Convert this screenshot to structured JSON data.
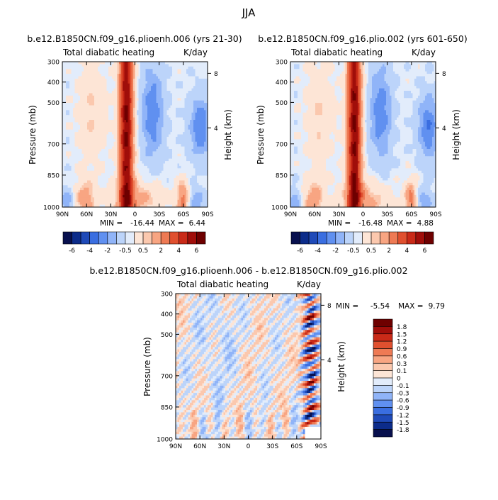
{
  "page_title": "JJA",
  "colors": {
    "axis": "#000000",
    "background": "#ffffff"
  },
  "chart_data": [
    {
      "id": "panel1",
      "type": "heatmap",
      "title": "b.e12.B1850CN.f09_g16.plioenh.006 (yrs 21-30)",
      "left_label": "Total diabatic heating",
      "right_label": "K/day",
      "xlabel": "",
      "ylabel": "Pressure (mb)",
      "y2label": "Height (km)",
      "x_ticks": [
        "90N",
        "60N",
        "30N",
        "0",
        "30S",
        "60S",
        "90S"
      ],
      "y_ticks": [
        "300",
        "400",
        "500",
        "700",
        "850",
        "1000"
      ],
      "y2_ticks": [
        "8",
        "4"
      ],
      "min_label": "MIN =",
      "min_value": "-16.44",
      "max_label": "MAX =",
      "max_value": "6.44",
      "seed": 1,
      "diff": false
    },
    {
      "id": "panel2",
      "type": "heatmap",
      "title": "b.e12.B1850CN.f09_g16.plio.002 (yrs 601-650)",
      "left_label": "Total diabatic heating",
      "right_label": "K/day",
      "xlabel": "",
      "ylabel": "Pressure (mb)",
      "y2label": "Height (km)",
      "x_ticks": [
        "90N",
        "60N",
        "30N",
        "0",
        "30S",
        "60S",
        "90S"
      ],
      "y_ticks": [
        "300",
        "400",
        "500",
        "700",
        "850",
        "1000"
      ],
      "y2_ticks": [
        "8",
        "4"
      ],
      "min_label": "MIN =",
      "min_value": "-16.48",
      "max_label": "MAX =",
      "max_value": "4.88",
      "seed": 2,
      "diff": false
    },
    {
      "id": "panel3",
      "type": "heatmap",
      "title": "b.e12.B1850CN.f09_g16.plioenh.006 - b.e12.B1850CN.f09_g16.plio.002",
      "left_label": "Total diabatic heating",
      "right_label": "K/day",
      "xlabel": "",
      "ylabel": "Pressure (mb)",
      "y2label": "Height (km)",
      "x_ticks": [
        "90N",
        "60N",
        "30N",
        "0",
        "30S",
        "60S",
        "90S"
      ],
      "y_ticks": [
        "300",
        "400",
        "500",
        "700",
        "850",
        "1000"
      ],
      "y2_ticks": [
        "8",
        "4"
      ],
      "min_label": "MIN =",
      "min_value": "-5.54",
      "max_label": "MAX =",
      "max_value": "9.79",
      "seed": 3,
      "diff": true
    }
  ],
  "colorbar_main": {
    "labels": [
      "-6",
      "-4",
      "-2",
      "-0.5",
      "0.5",
      "2",
      "4",
      "6"
    ],
    "colors": [
      "#08104e",
      "#0c2c8a",
      "#1f4ab8",
      "#3a6ee0",
      "#6090f0",
      "#90b4f8",
      "#bcd4fa",
      "#e2ecfb",
      "#fde5d6",
      "#fbc8ae",
      "#f8a582",
      "#ee7a54",
      "#e0502f",
      "#c92a18",
      "#a00e0a",
      "#6e0000"
    ]
  },
  "colorbar_diff": {
    "labels": [
      "1.8",
      "1.5",
      "1.2",
      "0.9",
      "0.6",
      "0.3",
      "0.1",
      "0",
      "-0.1",
      "-0.3",
      "-0.6",
      "-0.9",
      "-1.2",
      "-1.5",
      "-1.8"
    ],
    "colors": [
      "#6e0000",
      "#a00e0a",
      "#c92a18",
      "#e0502f",
      "#ee7a54",
      "#f8a582",
      "#fbc8ae",
      "#fde5d6",
      "#e2ecfb",
      "#bcd4fa",
      "#90b4f8",
      "#6090f0",
      "#3a6ee0",
      "#1f4ab8",
      "#0c2c8a",
      "#08104e"
    ]
  }
}
